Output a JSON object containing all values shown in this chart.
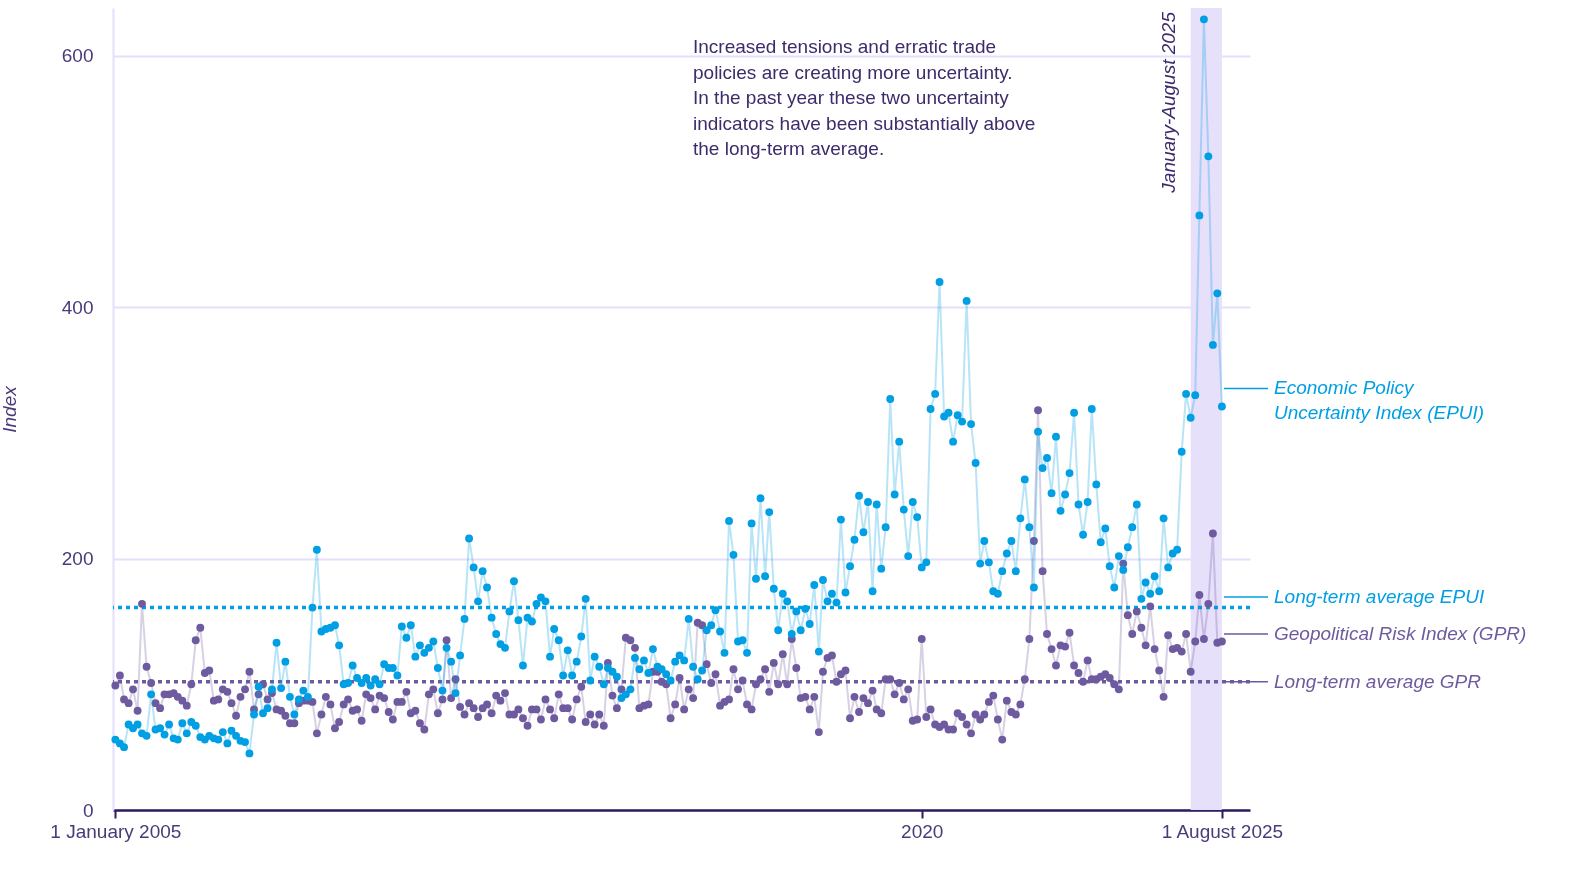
{
  "chart_data": {
    "type": "line",
    "ylabel": "Index",
    "annotations": [
      "Increased tensions and erratic trade policies are creating more uncertainty. In the past year these two uncertainty indicators have been substantially above the long-term average."
    ],
    "x": [
      "2005-01",
      "2005-02",
      "2005-03",
      "2005-04",
      "2005-05",
      "2005-06",
      "2005-07",
      "2005-08",
      "2005-09",
      "2005-10",
      "2005-11",
      "2005-12",
      "2006-01",
      "2006-02",
      "2006-03",
      "2006-04",
      "2006-05",
      "2006-06",
      "2006-07",
      "2006-08",
      "2006-09",
      "2006-10",
      "2006-11",
      "2006-12",
      "2007-01",
      "2007-02",
      "2007-03",
      "2007-04",
      "2007-05",
      "2007-06",
      "2007-07",
      "2007-08",
      "2007-09",
      "2007-10",
      "2007-11",
      "2007-12",
      "2008-01",
      "2008-02",
      "2008-03",
      "2008-04",
      "2008-05",
      "2008-06",
      "2008-07",
      "2008-08",
      "2008-09",
      "2008-10",
      "2008-11",
      "2008-12",
      "2009-01",
      "2009-02",
      "2009-03",
      "2009-04",
      "2009-05",
      "2009-06",
      "2009-07",
      "2009-08",
      "2009-09",
      "2009-10",
      "2009-11",
      "2009-12",
      "2010-01",
      "2010-02",
      "2010-03",
      "2010-04",
      "2010-05",
      "2010-06",
      "2010-07",
      "2010-08",
      "2010-09",
      "2010-10",
      "2010-11",
      "2010-12",
      "2011-01",
      "2011-02",
      "2011-03",
      "2011-04",
      "2011-05",
      "2011-06",
      "2011-07",
      "2011-08",
      "2011-09",
      "2011-10",
      "2011-11",
      "2011-12",
      "2012-01",
      "2012-02",
      "2012-03",
      "2012-04",
      "2012-05",
      "2012-06",
      "2012-07",
      "2012-08",
      "2012-09",
      "2012-10",
      "2012-11",
      "2012-12",
      "2013-01",
      "2013-02",
      "2013-03",
      "2013-04",
      "2013-05",
      "2013-06",
      "2013-07",
      "2013-08",
      "2013-09",
      "2013-10",
      "2013-11",
      "2013-12",
      "2014-01",
      "2014-02",
      "2014-03",
      "2014-04",
      "2014-05",
      "2014-06",
      "2014-07",
      "2014-08",
      "2014-09",
      "2014-10",
      "2014-11",
      "2014-12",
      "2015-01",
      "2015-02",
      "2015-03",
      "2015-04",
      "2015-05",
      "2015-06",
      "2015-07",
      "2015-08",
      "2015-09",
      "2015-10",
      "2015-11",
      "2015-12",
      "2016-01",
      "2016-02",
      "2016-03",
      "2016-04",
      "2016-05",
      "2016-06",
      "2016-07",
      "2016-08",
      "2016-09",
      "2016-10",
      "2016-11",
      "2016-12",
      "2017-01",
      "2017-02",
      "2017-03",
      "2017-04",
      "2017-05",
      "2017-06",
      "2017-07",
      "2017-08",
      "2017-09",
      "2017-10",
      "2017-11",
      "2017-12",
      "2018-01",
      "2018-02",
      "2018-03",
      "2018-04",
      "2018-05",
      "2018-06",
      "2018-07",
      "2018-08",
      "2018-09",
      "2018-10",
      "2018-11",
      "2018-12",
      "2019-01",
      "2019-02",
      "2019-03",
      "2019-04",
      "2019-05",
      "2019-06",
      "2019-07",
      "2019-08",
      "2019-09",
      "2019-10",
      "2019-11",
      "2019-12",
      "2020-01",
      "2020-02",
      "2020-03",
      "2020-04",
      "2020-05",
      "2020-06",
      "2020-07",
      "2020-08",
      "2020-09",
      "2020-10",
      "2020-11",
      "2020-12",
      "2021-01",
      "2021-02",
      "2021-03",
      "2021-04",
      "2021-05",
      "2021-06",
      "2021-07",
      "2021-08",
      "2021-09",
      "2021-10",
      "2021-11",
      "2021-12",
      "2022-01",
      "2022-02",
      "2022-03",
      "2022-04",
      "2022-05",
      "2022-06",
      "2022-07",
      "2022-08",
      "2022-09",
      "2022-10",
      "2022-11",
      "2022-12",
      "2023-01",
      "2023-02",
      "2023-03",
      "2023-04",
      "2023-05",
      "2023-06",
      "2023-07",
      "2023-08",
      "2023-09",
      "2023-10",
      "2023-11",
      "2023-12",
      "2024-01",
      "2024-02",
      "2024-03",
      "2024-04",
      "2024-05",
      "2024-06",
      "2024-07",
      "2024-08",
      "2024-09",
      "2024-10",
      "2024-11",
      "2024-12",
      "2025-01",
      "2025-02",
      "2025-03",
      "2025-04",
      "2025-05",
      "2025-06",
      "2025-07",
      "2025-08"
    ],
    "series": [
      {
        "name": "Geopolitical Risk Index (GPR)",
        "color": "#6e5a9e",
        "values": [
          99,
          107,
          88,
          85,
          96,
          79,
          164,
          114,
          101,
          85,
          81,
          92,
          92,
          93,
          90,
          87,
          83,
          100,
          135,
          145,
          109,
          111,
          87,
          88,
          96,
          94,
          85,
          75,
          90,
          96,
          110,
          80,
          92,
          100,
          88,
          93,
          80,
          79,
          75,
          69,
          69,
          85,
          87,
          87,
          86,
          61,
          76,
          90,
          84,
          65,
          70,
          84,
          88,
          79,
          80,
          71,
          92,
          89,
          80,
          91,
          89,
          78,
          72,
          86,
          86,
          94,
          77,
          79,
          69,
          64,
          92,
          96,
          77,
          88,
          135,
          89,
          104,
          82,
          76,
          85,
          81,
          74,
          81,
          84,
          77,
          91,
          87,
          93,
          76,
          76,
          80,
          73,
          67,
          80,
          80,
          72,
          88,
          80,
          73,
          92,
          81,
          81,
          72,
          88,
          98,
          70,
          76,
          68,
          76,
          67,
          117,
          91,
          81,
          96,
          137,
          135,
          129,
          81,
          83,
          84,
          110,
          110,
          102,
          100,
          73,
          84,
          105,
          80,
          96,
          89,
          149,
          147,
          116,
          101,
          108,
          83,
          86,
          88,
          112,
          96,
          103,
          84,
          80,
          100,
          104,
          112,
          94,
          117,
          100,
          124,
          100,
          136,
          113,
          89,
          90,
          80,
          90,
          62,
          110,
          121,
          123,
          102,
          108,
          111,
          73,
          90,
          78,
          89,
          85,
          95,
          80,
          77,
          104,
          104,
          92,
          101,
          88,
          96,
          71,
          72,
          136,
          74,
          80,
          68,
          66,
          68,
          64,
          64,
          77,
          74,
          68,
          61,
          76,
          72,
          76,
          86,
          91,
          72,
          56,
          87,
          78,
          76,
          84,
          104,
          136,
          214,
          318,
          190,
          140,
          128,
          115,
          131,
          130,
          141,
          115,
          109,
          102,
          119,
          104,
          104,
          106,
          108,
          105,
          100,
          96,
          196,
          155,
          140,
          158,
          145,
          131,
          162,
          128,
          111,
          90,
          139,
          128,
          129,
          126,
          140,
          110,
          134,
          171,
          136,
          164,
          220,
          133,
          134
        ]
      },
      {
        "name": "Economic Policy Uncertainty Index (EPUI)",
        "color": "#009fe3",
        "values": [
          56,
          53,
          50,
          68,
          65,
          68,
          61,
          59,
          92,
          64,
          65,
          60,
          68,
          57,
          56,
          69,
          61,
          70,
          67,
          58,
          56,
          59,
          57,
          56,
          62,
          53,
          63,
          59,
          55,
          54,
          45,
          76,
          98,
          77,
          81,
          96,
          133,
          97,
          118,
          90,
          76,
          88,
          95,
          90,
          161,
          207,
          142,
          144,
          145,
          147,
          131,
          100,
          101,
          115,
          105,
          101,
          105,
          99,
          104,
          100,
          116,
          113,
          113,
          107,
          146,
          137,
          147,
          122,
          131,
          125,
          129,
          134,
          113,
          95,
          129,
          118,
          93,
          123,
          152,
          216,
          193,
          166,
          190,
          177,
          153,
          140,
          132,
          129,
          158,
          182,
          151,
          115,
          153,
          150,
          164,
          169,
          166,
          122,
          144,
          135,
          107,
          127,
          107,
          118,
          138,
          168,
          103,
          122,
          114,
          100,
          113,
          110,
          106,
          89,
          92,
          96,
          121,
          112,
          119,
          109,
          128,
          114,
          112,
          108,
          103,
          118,
          123,
          119,
          152,
          114,
          104,
          111,
          143,
          147,
          159,
          142,
          125,
          230,
          203,
          134,
          135,
          125,
          228,
          184,
          248,
          186,
          237,
          176,
          143,
          172,
          166,
          140,
          158,
          143,
          160,
          148,
          179,
          126,
          183,
          166,
          172,
          165,
          231,
          173,
          194,
          215,
          250,
          221,
          245,
          174,
          243,
          192,
          225,
          327,
          251,
          293,
          239,
          202,
          245,
          233,
          193,
          197,
          319,
          331,
          420,
          313,
          316,
          293,
          314,
          309,
          405,
          307,
          276,
          196,
          214,
          197,
          174,
          172,
          190,
          204,
          214,
          190,
          232,
          263,
          225,
          177,
          301,
          272,
          280,
          252,
          297,
          238,
          251,
          268,
          316,
          243,
          219,
          245,
          319,
          259,
          213,
          224,
          194,
          177,
          202,
          191,
          209,
          225,
          243,
          168,
          181,
          172,
          186,
          174,
          232,
          193,
          204,
          207,
          285,
          331,
          312,
          330,
          473,
          629,
          520,
          370,
          411,
          321
        ]
      }
    ],
    "xlim": [
      "2004-12-16",
      "2026-02-08"
    ],
    "xticks": [
      {
        "value": "2005-01",
        "label": "1 January 2005"
      },
      {
        "value": "2020-01",
        "label": "2020"
      },
      {
        "value": "2025-08",
        "label": "1 August 2025"
      }
    ],
    "ylim": [
      0,
      638
    ],
    "yticks": [
      0,
      200,
      400,
      600
    ],
    "grid": "y",
    "legend": "right",
    "marker": "circle",
    "line_style": "solid",
    "ref_lines": [
      {
        "axis": "y",
        "value": 161,
        "label": "Long-term average EPUI",
        "color": "#009fe3",
        "line_style": "dotted"
      },
      {
        "axis": "y",
        "value": 102,
        "label": "Long-term average GPR",
        "color": "#6e5a9e",
        "line_style": "dotted"
      }
    ],
    "bands": [
      {
        "axis": "x",
        "from": "2025-01",
        "to": "2025-08",
        "label": "January-August 2025",
        "color": "#e6e0fb"
      }
    ]
  }
}
